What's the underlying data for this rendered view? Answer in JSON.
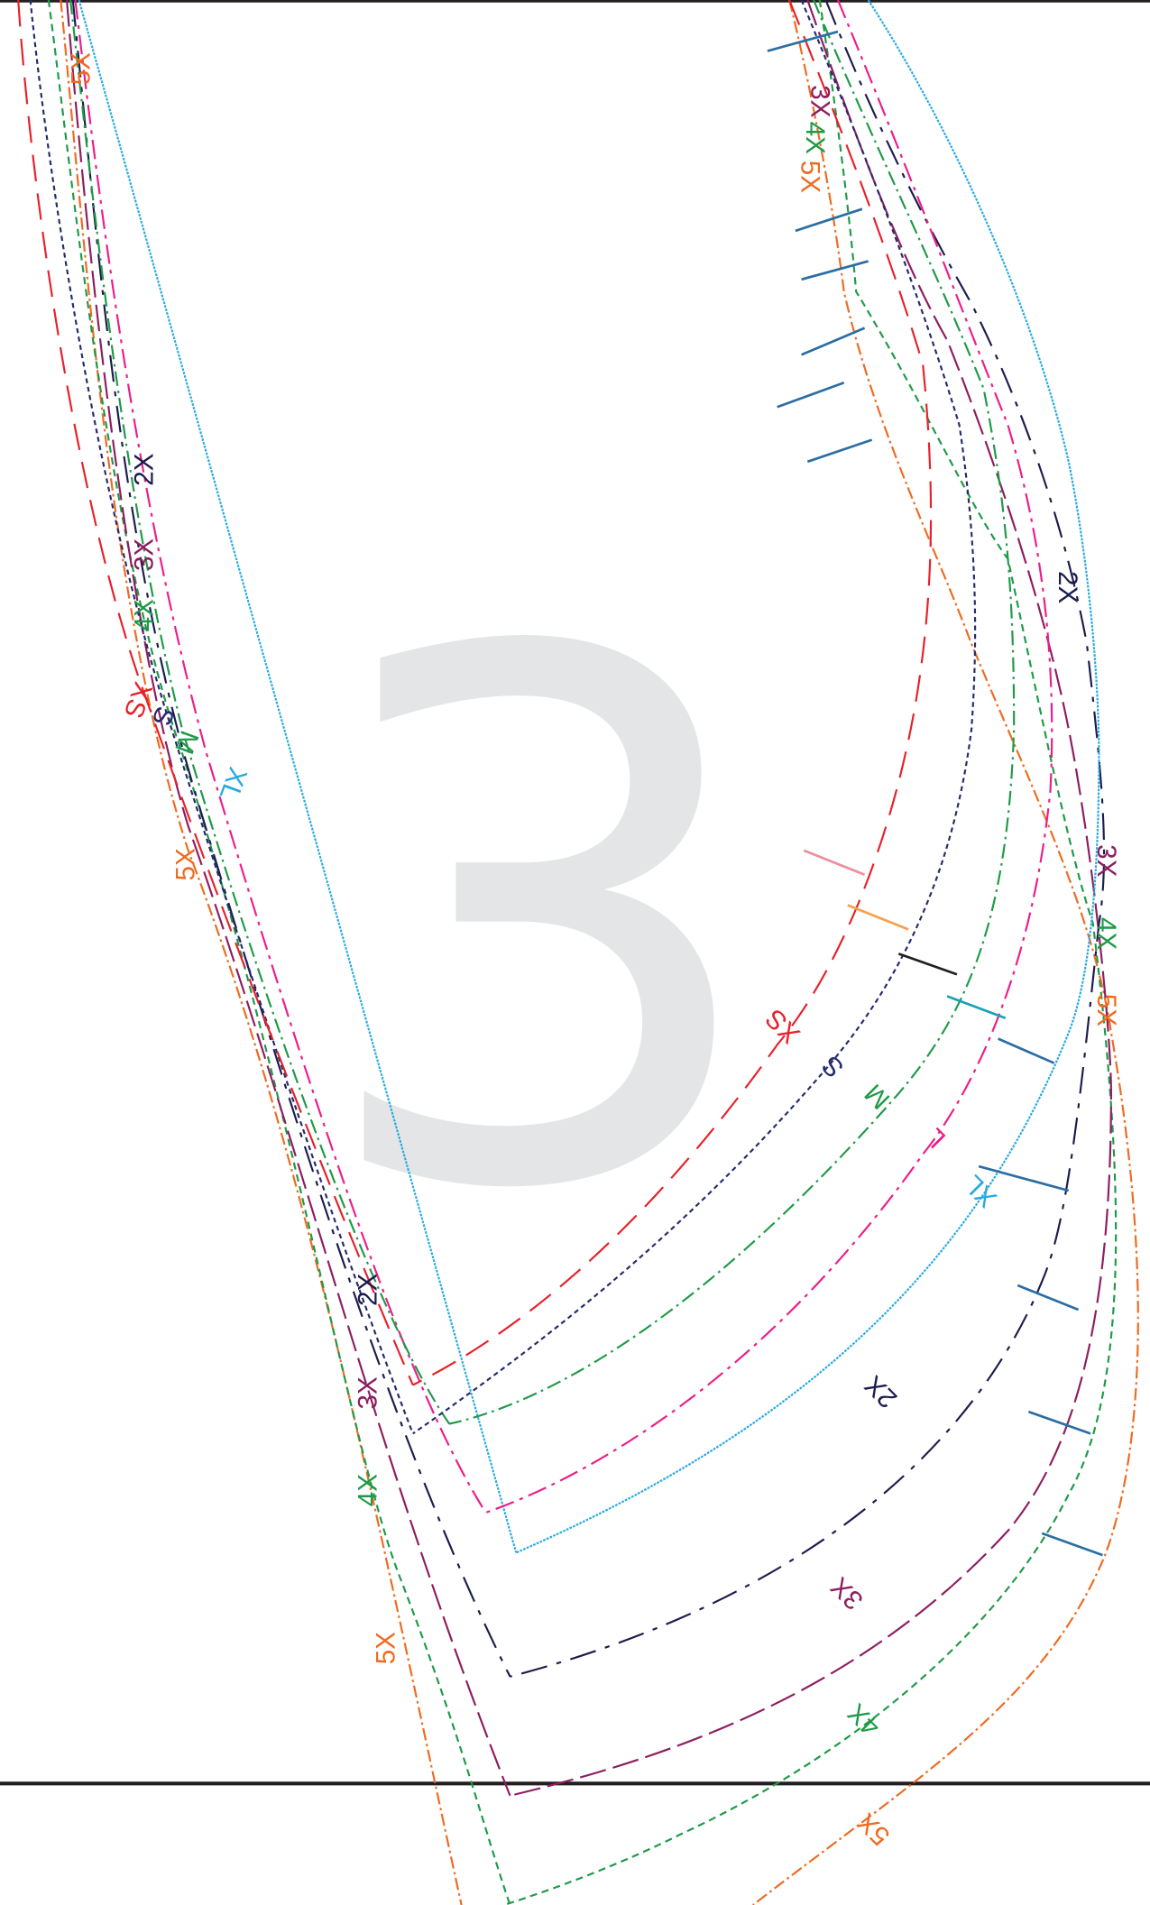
{
  "page_number": "3",
  "colors": {
    "page_number": "#e4e5e6",
    "border": "#231f20",
    "size_XS": "#e8202a",
    "size_S": "#262a6e",
    "size_M": "#1d9a47",
    "size_L": "#ec1d8a",
    "size_XL": "#27aae1",
    "size_2X": "#1b1c4d",
    "size_3X": "#8d1d5f",
    "size_4X": "#1d9a47",
    "size_5X": "#ef6a1f",
    "notch_blue": "#2b6ea3",
    "notch_pink": "#f18c9a",
    "notch_orange": "#f7a14a",
    "notch_black": "#231f20",
    "notch_teal": "#17a2b3"
  },
  "sizes": [
    {
      "key": "XS",
      "color": "#e8202a"
    },
    {
      "key": "S",
      "color": "#262a6e"
    },
    {
      "key": "M",
      "color": "#1d9a47"
    },
    {
      "key": "L",
      "color": "#ec1d8a"
    },
    {
      "key": "XL",
      "color": "#27aae1"
    },
    {
      "key": "2X",
      "color": "#1b1c4d"
    },
    {
      "key": "3X",
      "color": "#8d1d5f"
    },
    {
      "key": "4X",
      "color": "#1d9a47"
    },
    {
      "key": "5X",
      "color": "#ef6a1f"
    }
  ],
  "labels": {
    "xs": "XS",
    "s": "S",
    "m": "M",
    "l": "L",
    "xl": "XL",
    "x2": "2X",
    "x3": "3X",
    "x4": "4X",
    "x5": "5X"
  }
}
